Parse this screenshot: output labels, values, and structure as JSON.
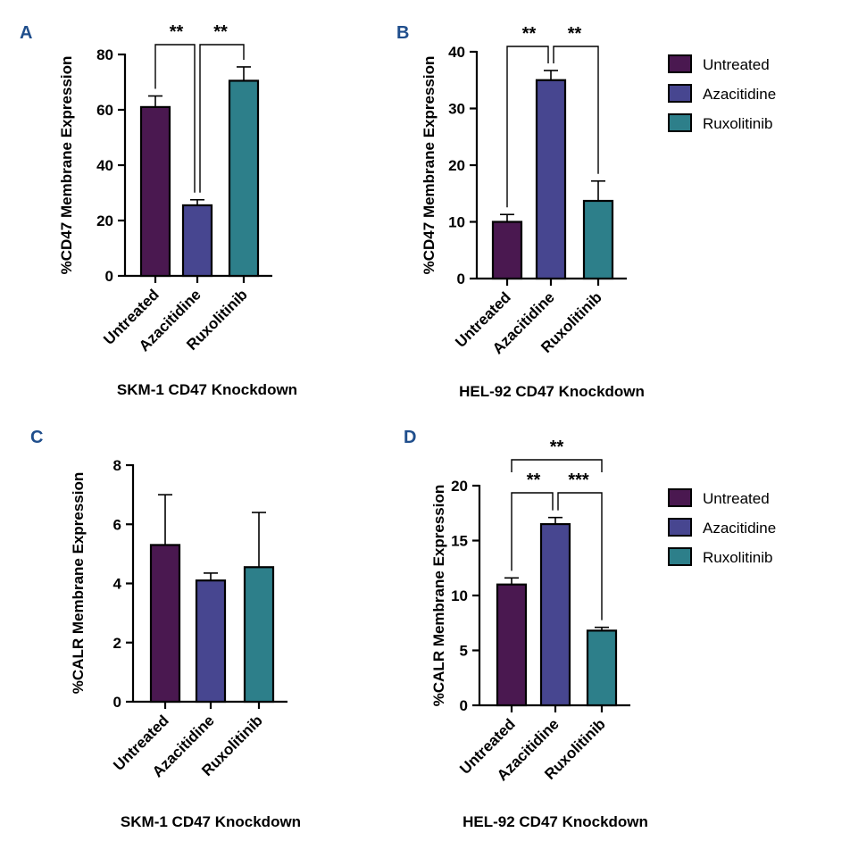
{
  "figure": {
    "series_colors": {
      "Untreated": "#4a1850",
      "Azacitidine": "#474690",
      "Ruxolitinib": "#2d7f8a"
    }
  },
  "legends": [
    {
      "panel": "B",
      "entries": [
        "Untreated",
        "Azacitidine",
        "Ruxolitinib"
      ]
    },
    {
      "panel": "D",
      "entries": [
        "Untreated",
        "Azacitidine",
        "Ruxolitinib"
      ]
    }
  ],
  "chart_data": [
    {
      "panel": "A",
      "type": "bar",
      "title": "SKM-1 CD47 Knockdown",
      "ylabel": "%CD47 Membrane Expression",
      "categories": [
        "Untreated",
        "Azacitidine",
        "Ruxolitinib"
      ],
      "values": [
        61,
        25.5,
        70.5
      ],
      "errors": [
        4,
        2,
        5
      ],
      "ylim": [
        0,
        80
      ],
      "yticks": [
        0,
        20,
        40,
        60,
        80
      ],
      "significance": [
        {
          "from": 0,
          "to": 1,
          "label": "**"
        },
        {
          "from": 1,
          "to": 2,
          "label": "**"
        }
      ]
    },
    {
      "panel": "B",
      "type": "bar",
      "title": "HEL-92 CD47 Knockdown",
      "ylabel": "%CD47 Membrane Expression",
      "categories": [
        "Untreated",
        "Azacitidine",
        "Ruxolitinib"
      ],
      "values": [
        10,
        35,
        13.7
      ],
      "errors": [
        1.3,
        1.7,
        3.5
      ],
      "ylim": [
        0,
        40
      ],
      "yticks": [
        0,
        10,
        20,
        30,
        40
      ],
      "significance": [
        {
          "from": 0,
          "to": 1,
          "label": "**"
        },
        {
          "from": 1,
          "to": 2,
          "label": "**"
        }
      ]
    },
    {
      "panel": "C",
      "type": "bar",
      "title": "SKM-1 CD47 Knockdown",
      "ylabel": "%CALR Membrane Expression",
      "categories": [
        "Untreated",
        "Azacitidine",
        "Ruxolitinib"
      ],
      "values": [
        5.3,
        4.1,
        4.55
      ],
      "errors": [
        1.7,
        0.25,
        1.85
      ],
      "ylim": [
        0,
        8
      ],
      "yticks": [
        0,
        2,
        4,
        6,
        8
      ],
      "significance": []
    },
    {
      "panel": "D",
      "type": "bar",
      "title": "HEL-92 CD47 Knockdown",
      "ylabel": "%CALR Membrane Expression",
      "categories": [
        "Untreated",
        "Azacitidine",
        "Ruxolitinib"
      ],
      "values": [
        11,
        16.5,
        6.8
      ],
      "errors": [
        0.6,
        0.6,
        0.3
      ],
      "ylim": [
        0,
        20
      ],
      "yticks": [
        0,
        5,
        10,
        15,
        20
      ],
      "significance": [
        {
          "from": 0,
          "to": 1,
          "label": "**"
        },
        {
          "from": 1,
          "to": 2,
          "label": "***"
        },
        {
          "from": 0,
          "to": 2,
          "label": "**"
        }
      ]
    }
  ]
}
